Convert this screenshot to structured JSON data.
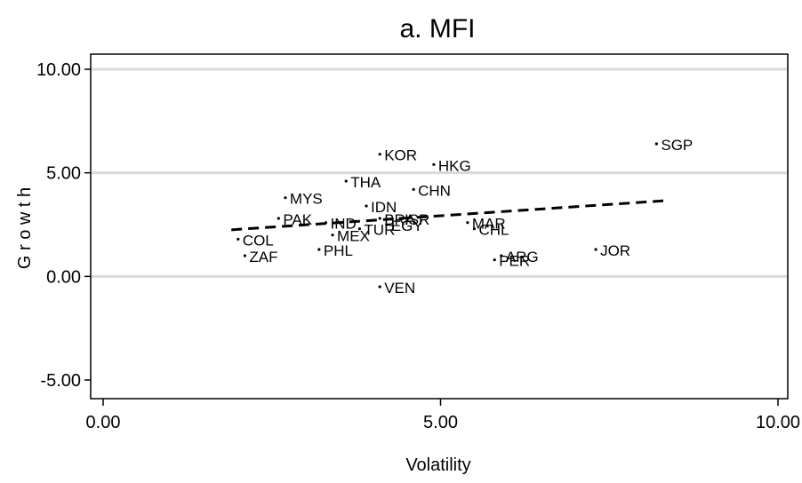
{
  "chart_data": {
    "type": "scatter",
    "title": "a. MFI",
    "xlabel": "Volatility",
    "ylabel": "G r o w t h",
    "xlim": [
      0,
      10
    ],
    "ylim": [
      -5,
      10
    ],
    "xticks": [
      "0.00",
      "5.00",
      "10.00"
    ],
    "yticks": [
      "-5.00",
      "0.00",
      "5.00",
      "10.00"
    ],
    "grid": true,
    "legend": "none",
    "points": [
      {
        "label": "SGP",
        "x": 8.2,
        "y": 6.4
      },
      {
        "label": "KOR",
        "x": 4.1,
        "y": 5.9
      },
      {
        "label": "HKG",
        "x": 4.9,
        "y": 5.4
      },
      {
        "label": "THA",
        "x": 3.6,
        "y": 4.6
      },
      {
        "label": "CHN",
        "x": 4.6,
        "y": 4.2
      },
      {
        "label": "MYS",
        "x": 2.7,
        "y": 3.8
      },
      {
        "label": "IDN",
        "x": 3.9,
        "y": 3.4
      },
      {
        "label": "PAK",
        "x": 2.6,
        "y": 2.8
      },
      {
        "label": "IND",
        "x": 3.3,
        "y": 2.6
      },
      {
        "label": "BRA",
        "x": 4.1,
        "y": 2.8
      },
      {
        "label": "ISR",
        "x": 4.4,
        "y": 2.8
      },
      {
        "label": "EGY",
        "x": 4.2,
        "y": 2.5
      },
      {
        "label": "TUR",
        "x": 3.8,
        "y": 2.3
      },
      {
        "label": "MEX",
        "x": 3.4,
        "y": 2.0
      },
      {
        "label": "MAR",
        "x": 5.4,
        "y": 2.6
      },
      {
        "label": "CHL",
        "x": 5.5,
        "y": 2.3
      },
      {
        "label": "COL",
        "x": 2.0,
        "y": 1.8
      },
      {
        "label": "PHL",
        "x": 3.2,
        "y": 1.3
      },
      {
        "label": "ZAF",
        "x": 2.1,
        "y": 1.0
      },
      {
        "label": "JOR",
        "x": 7.3,
        "y": 1.3
      },
      {
        "label": "ARG",
        "x": 5.9,
        "y": 1.0
      },
      {
        "label": "PER",
        "x": 5.8,
        "y": 0.8
      },
      {
        "label": "VEN",
        "x": 4.1,
        "y": -0.5
      }
    ],
    "fit_line": {
      "style": "dashed",
      "x": [
        1.9,
        8.3
      ],
      "y": [
        2.25,
        3.65
      ]
    }
  }
}
